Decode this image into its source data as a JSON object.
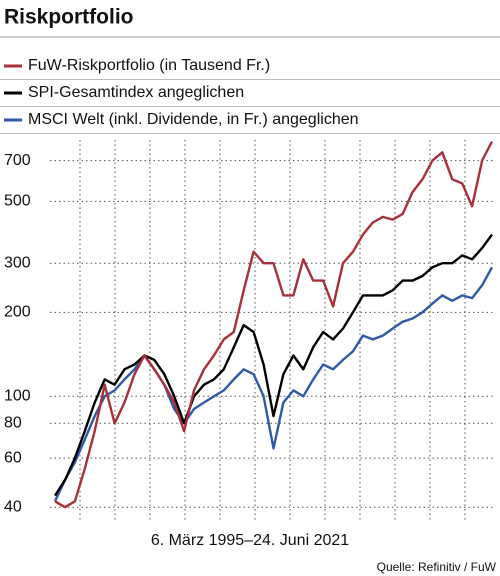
{
  "chart_data": {
    "type": "line",
    "title": "Riskportfolio",
    "xlabel": "6. März 1995–24. Juni 2021",
    "source": "Quelle: Refinitiv / FuW",
    "log_y": true,
    "grid": true,
    "ylim": [
      36,
      830
    ],
    "yticks": [
      40,
      60,
      80,
      100,
      200,
      300,
      500,
      700
    ],
    "series": [
      {
        "name": "FuW-Riskportfolio (in Tausend Fr.)",
        "color": "#a8303a",
        "values": [
          42,
          40,
          42,
          55,
          75,
          110,
          80,
          95,
          120,
          140,
          125,
          110,
          95,
          75,
          105,
          125,
          140,
          160,
          170,
          240,
          330,
          300,
          300,
          230,
          230,
          310,
          260,
          260,
          210,
          300,
          330,
          380,
          420,
          440,
          430,
          450,
          540,
          600,
          700,
          750,
          600,
          580,
          480,
          700,
          820
        ]
      },
      {
        "name": "SPI-Gesamtindex angeglichen",
        "color": "#000000",
        "values": [
          44,
          50,
          60,
          75,
          95,
          115,
          110,
          125,
          130,
          140,
          135,
          120,
          100,
          80,
          100,
          110,
          115,
          125,
          150,
          180,
          170,
          130,
          85,
          120,
          140,
          125,
          150,
          170,
          160,
          175,
          200,
          230,
          230,
          230,
          240,
          260,
          260,
          270,
          290,
          300,
          300,
          320,
          310,
          340,
          380
        ]
      },
      {
        "name": "MSCI Welt (inkl. Dividende, in Fr.) angeglichen",
        "color": "#2f5aa8",
        "values": [
          42,
          50,
          58,
          70,
          85,
          100,
          105,
          115,
          125,
          140,
          125,
          110,
          90,
          80,
          90,
          95,
          100,
          105,
          115,
          125,
          120,
          100,
          65,
          95,
          105,
          100,
          115,
          130,
          125,
          135,
          145,
          165,
          160,
          165,
          175,
          185,
          190,
          200,
          215,
          230,
          220,
          230,
          225,
          250,
          290
        ]
      }
    ]
  }
}
